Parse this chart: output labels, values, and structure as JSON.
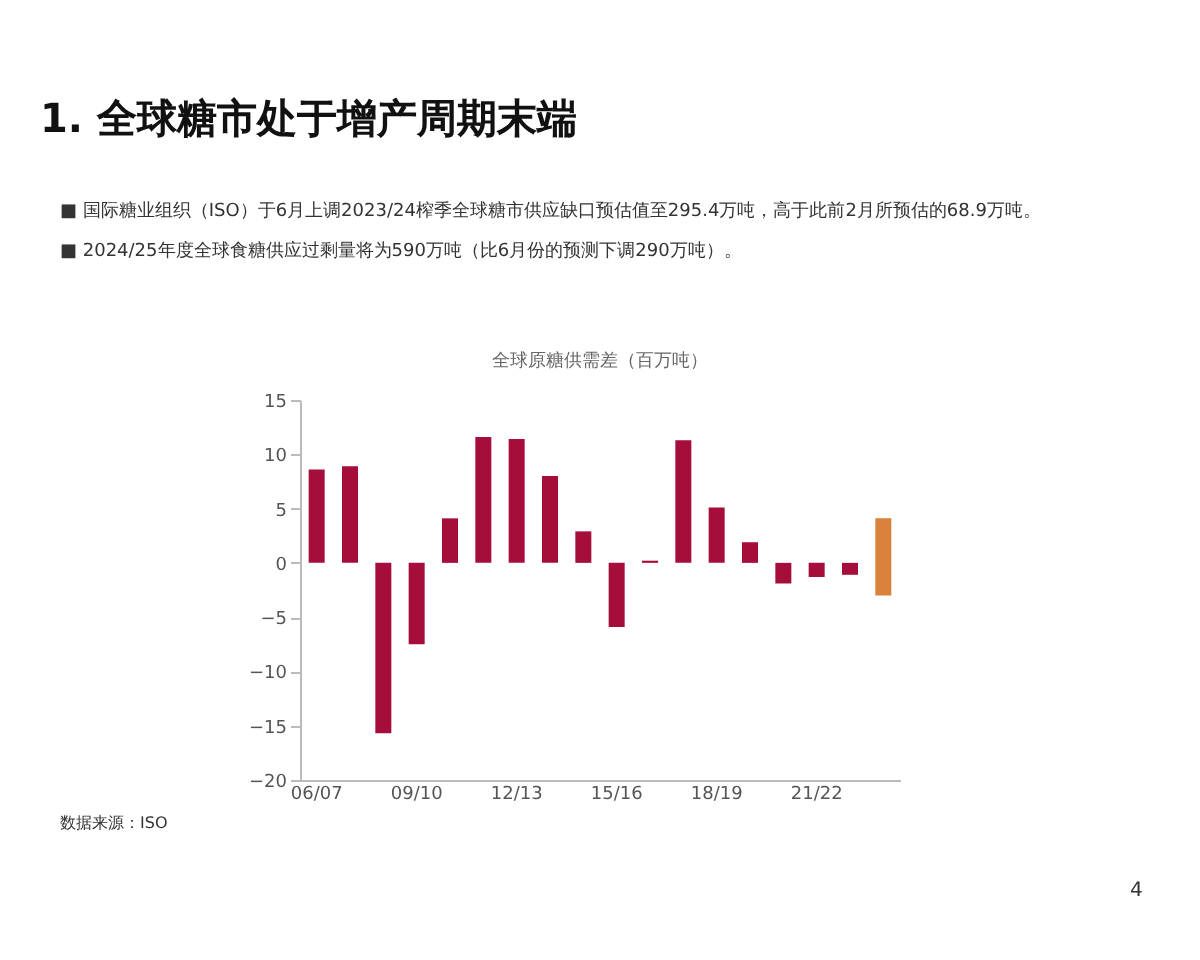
{
  "chart_data": {
    "type": "bar",
    "title": "1. 全球糖市处于增产周期末端",
    "subtitle": "全球原糖供需差（百万吨）",
    "annotations": [
      "■ 国际糖业组织（ISO）于6月上调2023/24榨季全球糖市供应缺口预估值至295.4万吨，高于此前2月所预估的68.9万吨。",
      "■ 2024/25年度全球食糖供应过剩量将为590万吨（比6月份的预测下调290万吨）。",
      "数据来源：ISO",
      "4"
    ],
    "categories": [
      "06/07",
      null,
      null,
      "09/10",
      null,
      null,
      "12/13",
      null,
      null,
      "15/16",
      null,
      null,
      "18/19",
      null,
      null,
      "21/22",
      null,
      null
    ],
    "values": [
      8.6,
      8.9,
      -15.7,
      -7.5,
      4.1,
      11.6,
      11.4,
      8.0,
      2.9,
      -5.9,
      0.2,
      11.3,
      5.1,
      1.9,
      -1.9,
      -1.3,
      -1.1,
      7.1
    ],
    "base": [
      0,
      0,
      0,
      0,
      0,
      0,
      0,
      0,
      0,
      0,
      0,
      0,
      0,
      0,
      0,
      0,
      0,
      -3.0
    ],
    "colors": [
      "#a50d3a",
      "#a50d3a",
      "#a50d3a",
      "#a50d3a",
      "#a50d3a",
      "#a50d3a",
      "#a50d3a",
      "#a50d3a",
      "#a50d3a",
      "#a50d3a",
      "#a50d3a",
      "#a50d3a",
      "#a50d3a",
      "#a50d3a",
      "#a50d3a",
      "#a50d3a",
      "#a50d3a",
      "#d9823b"
    ],
    "ylim": [
      -20,
      15
    ],
    "yticks": [
      -20,
      -15,
      -10,
      -5,
      0,
      5,
      10,
      15
    ],
    "grid": false
  }
}
